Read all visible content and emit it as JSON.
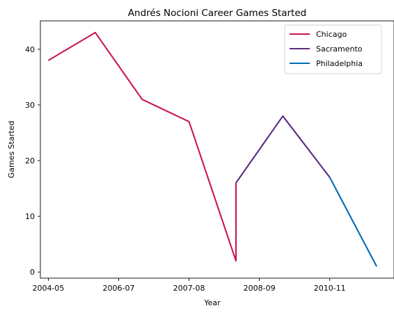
{
  "chart_data": {
    "type": "line",
    "title": "Andrés Nocioni Career Games Started",
    "xlabel": "Year",
    "ylabel": "Games Started",
    "x_ticks": [
      "2004-05",
      "2006-07",
      "2007-08",
      "2008-09",
      "2010-11"
    ],
    "y_ticks": [
      0,
      10,
      20,
      30,
      40
    ],
    "xlim": [
      -0.17,
      7.37
    ],
    "ylim": [
      -1.1,
      45.1
    ],
    "grid": false,
    "legend_position": "top-right",
    "series": [
      {
        "name": "Chicago",
        "color": "#c8174b",
        "points": [
          [
            0,
            38
          ],
          [
            1,
            43
          ],
          [
            2,
            31
          ],
          [
            3,
            27
          ],
          [
            4,
            2
          ],
          [
            4,
            16
          ]
        ]
      },
      {
        "name": "Sacramento",
        "color": "#5b2c83",
        "points": [
          [
            4,
            16
          ],
          [
            5,
            28
          ],
          [
            6,
            17
          ]
        ]
      },
      {
        "name": "Philadelphia",
        "color": "#006bb6",
        "points": [
          [
            6,
            17
          ],
          [
            7,
            1
          ]
        ]
      }
    ]
  }
}
